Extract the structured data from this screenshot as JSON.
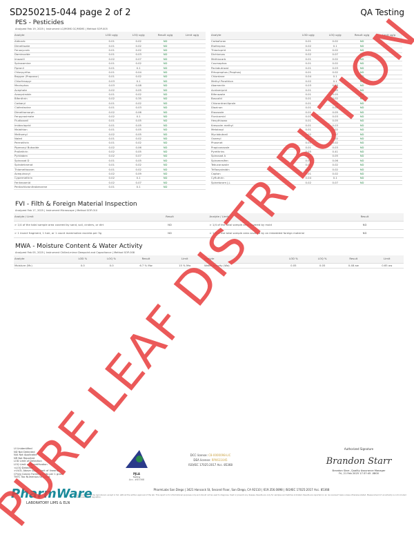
{
  "header": {
    "title": "SD250215-044 page 2 of 2",
    "org": "QA Testing"
  },
  "pes": {
    "title": "PES - Pesticides",
    "meta": "Analyzed Feb 19, 2025  |  Instrument LC/MSMS GC/MSMS  |  Method SOP-005",
    "columns": [
      "Analyte",
      "LOD ug/g",
      "LOQ ug/g",
      "Result ug/g",
      "Limit ug/g"
    ],
    "left": [
      [
        "Aldicarb",
        "0.01",
        "0.02",
        "ND"
      ],
      [
        "Dimethoate",
        "0.01",
        "0.02",
        "ND"
      ],
      [
        "Fenoxycarb",
        "0.01",
        "0.02",
        "ND"
      ],
      [
        "Daminozide",
        "0.01",
        "0.03",
        "ND"
      ],
      [
        "Imazalil",
        "0.02",
        "0.07",
        "ND"
      ],
      [
        "Spiroxamine",
        "0.01",
        "0.02",
        "ND"
      ],
      [
        "Fipronil",
        "0.01",
        "0.1",
        "ND"
      ],
      [
        "Chlorpyrifos",
        "0.01",
        "0.04",
        "ND"
      ],
      [
        "Baygon (Propoxur)",
        "0.01",
        "0.02",
        "ND"
      ],
      [
        "Chlorfenapyr",
        "0.03",
        "0.1",
        "ND"
      ],
      [
        "Mevinphos",
        "0.03",
        "0.08",
        "ND"
      ],
      [
        "Acephate",
        "0.02",
        "0.05",
        "ND"
      ],
      [
        "Azoxystrobin",
        "0.01",
        "0.02",
        "ND"
      ],
      [
        "Bifenthrin",
        "0.02",
        "0.35",
        "ND"
      ],
      [
        "Carbaryl",
        "0.01",
        "0.02",
        "ND"
      ],
      [
        "Clofentezine",
        "0.01",
        "0.03",
        "ND"
      ],
      [
        "Dimethomorph",
        "0.02",
        "0.06",
        "ND"
      ],
      [
        "Fenpyroximate",
        "0.02",
        "0.1",
        "ND"
      ],
      [
        "Fludioxonil",
        "0.01",
        "0.05",
        "ND"
      ],
      [
        "Imidacloprid",
        "0.01",
        "0.05",
        "ND"
      ],
      [
        "Malathion",
        "0.01",
        "0.05",
        "ND"
      ],
      [
        "Methomyl",
        "0.02",
        "0.05",
        "ND"
      ],
      [
        "Naled",
        "0.01",
        "0.02",
        "ND"
      ],
      [
        "Permethrin",
        "0.01",
        "0.02",
        "ND"
      ],
      [
        "Piperonyl Butoxide",
        "0.02",
        "0.06",
        "ND"
      ],
      [
        "Prallethrin",
        "0.02",
        "0.05",
        "ND"
      ],
      [
        "Pyridaben",
        "0.02",
        "0.07",
        "ND"
      ],
      [
        "Spinosad D",
        "0.01",
        "0.05",
        "ND"
      ],
      [
        "Spirotetramat",
        "0.01",
        "0.02",
        "ND"
      ],
      [
        "Thiamethoxam",
        "0.01",
        "0.02",
        "ND"
      ],
      [
        "Acequinocyl",
        "0.02",
        "0.09",
        "ND"
      ],
      [
        "Cypermethrin",
        "0.02",
        "0.1",
        "ND"
      ],
      [
        "Fenhexamid",
        "0.02",
        "0.07",
        "ND"
      ],
      [
        "Pentachloronitrobenzene",
        "0.01",
        "0.1",
        "ND"
      ]
    ],
    "right": [
      [
        "Carbofuran",
        "0.01",
        "0.02",
        "ND"
      ],
      [
        "Etofenprox",
        "0.02",
        "0.1",
        "ND"
      ],
      [
        "Thiacloprid",
        "0.01",
        "0.02",
        "ND"
      ],
      [
        "Dichlorvos",
        "0.02",
        "0.07",
        "ND"
      ],
      [
        "Methiocarb",
        "0.01",
        "0.02",
        "ND"
      ],
      [
        "Coumaphos",
        "0.01",
        "0.02",
        "ND"
      ],
      [
        "Paclobutrazol",
        "0.01",
        "0.03",
        "ND"
      ],
      [
        "Ethoprophos (Prophos)",
        "0.01",
        "0.02",
        "ND"
      ],
      [
        "Chlordane",
        "0.04",
        "0.1",
        "ND"
      ],
      [
        "Methyl Parathion",
        "0.02",
        "0.1",
        "ND"
      ],
      [
        "Abamectin",
        "0.03",
        "0.08",
        "ND"
      ],
      [
        "Acetamiprid",
        "0.01",
        "0.05",
        "ND"
      ],
      [
        "Bifenazate",
        "0.01",
        "0.05",
        "ND"
      ],
      [
        "Boscalid",
        "0.01",
        "0.02",
        "ND"
      ],
      [
        "Chlorantraniliprole",
        "0.01",
        "0.04",
        "ND"
      ],
      [
        "Diazinon",
        "0.01",
        "0.02",
        "ND"
      ],
      [
        "Etoxazole",
        "0.01",
        "0.05",
        "ND"
      ],
      [
        "Flonicamid",
        "0.01",
        "0.03",
        "ND"
      ],
      [
        "Hexythiazox",
        "0.01",
        "0.05",
        "ND"
      ],
      [
        "Kresoxim methyl",
        "0.01",
        "0.03",
        "ND"
      ],
      [
        "Metalaxyl",
        "0.01",
        "0.02",
        "ND"
      ],
      [
        "Myclobutanil",
        "0.02",
        "0.07",
        "ND"
      ],
      [
        "Oxamyl",
        "0.01",
        "0.02",
        "ND"
      ],
      [
        "Phosmet",
        "0.01",
        "0.02",
        "ND"
      ],
      [
        "Propiconazole",
        "0.01",
        "0.03",
        "ND"
      ],
      [
        "Pyrethrins",
        "0.05",
        "0.41",
        "ND"
      ],
      [
        "Spinosad A",
        "0.01",
        "0.05",
        "ND"
      ],
      [
        "Spiromesifen",
        "0.02",
        "0.06",
        "ND"
      ],
      [
        "Tebuconazole",
        "0.01",
        "0.02",
        "ND"
      ],
      [
        "Trifloxystrobin",
        "0.01",
        "0.02",
        "ND"
      ],
      [
        "Captan",
        "0.01",
        "0.02",
        "ND"
      ],
      [
        "Cyfluthrin",
        "0.04",
        "0.1",
        "ND"
      ],
      [
        "Spinetoram J,L",
        "0.02",
        "0.07",
        "ND"
      ]
    ]
  },
  "fvi": {
    "title": "FVI - Filth & Foreign Material Inspection",
    "meta": "Analyzed Feb 17, 2025  |  Instrument Microscope  |  Method SOP-010",
    "columns": [
      "Analyte / Limit",
      "Result",
      "Analyte / Limit",
      "Result"
    ],
    "rows": [
      [
        "> 1/4 of the total sample area covered by sand, soil, cinders, or dirt",
        "ND",
        "> 1/4 of the total sample area covered by mold",
        "ND"
      ],
      [
        "> 1 insect fragment, 1 hair, or 1 count mammalian excreta per 3g",
        "ND",
        "> 1/4 of the total sample area covered by an imbedded foreign material",
        "ND"
      ]
    ]
  },
  "mwa": {
    "title": "MWA - Moisture Content & Water Activity",
    "meta": "Analyzed Feb 05, 2025  |  Instrument Chilled-mirror Dewpoint and Capacitance  |  Method SOP-008",
    "columns": [
      "Analyte",
      "LOD %",
      "LOQ %",
      "Result",
      "Limit",
      "Analyte",
      "LOD %",
      "LOQ %",
      "Result",
      "Limit"
    ],
    "row": [
      "Moisture (Mc)",
      "0.0",
      "0.0",
      "6.7 % Mw",
      "15 % Mw",
      "Water Activity (Wa)",
      "0.05",
      "0.05",
      "0.48 aw",
      "0.65 aw"
    ]
  },
  "legend": [
    "UI Unidentified",
    "ND Not Detected",
    "N/A Not Applicable",
    "NR Not Reported",
    "LOD Limit of Detection",
    "LOQ Limit of Quantification",
    "<LOQ Detected",
    ">ULOL Above Upper limit of linearity",
    "CFU/g Colony Forming Units per 1 gram",
    "TNTC Too Numerous to Count"
  ],
  "accreditation": {
    "name": "PJLA",
    "sub": "Testing",
    "acc": "Acc. #85368"
  },
  "licenses": {
    "dcc_label": "DCC license:",
    "dcc": "C8-0000098-LIC",
    "dea_label": "DEA license:",
    "dea": "RP0611045",
    "iso": "ISO/IEC 17025:2017 Acc. 85368"
  },
  "signature": {
    "label": "Authorized Signature",
    "sig": "Brandon Starr",
    "name": "Brandon Starr, Quality Assurance Manager",
    "date": "Fri, 21 Feb 2025 17:37:45 -0800"
  },
  "footer": {
    "address": "PharmLabs San Diego | 3421 Hancock St, Second Floor, San Diego, CA 92110 | 619.356.0898 | ISO/IEC 17025:2017 Acc. 85368",
    "disclaimer": "This report shall not be reproduced, except in full, without the written approval of the lab. This report is for informational purposes only and should not be used to diagnose, treat or prevent any disease. Results are only for samples and batches indicated. Results are reported on an 'as received' basis unless otherwise stated. Measurement of uncertainty is not included unless required by regulation."
  },
  "logo": {
    "text1": "PharmWare",
    "text2": "LABORATORY LIMS & ELN"
  },
  "watermark": "PURE LEAF DISTRIBUTION",
  "colors": {
    "nd": "#2a8a4a",
    "watermark": "#e83c3c",
    "license": "#c8a040",
    "logo": "#1a8a9a"
  }
}
